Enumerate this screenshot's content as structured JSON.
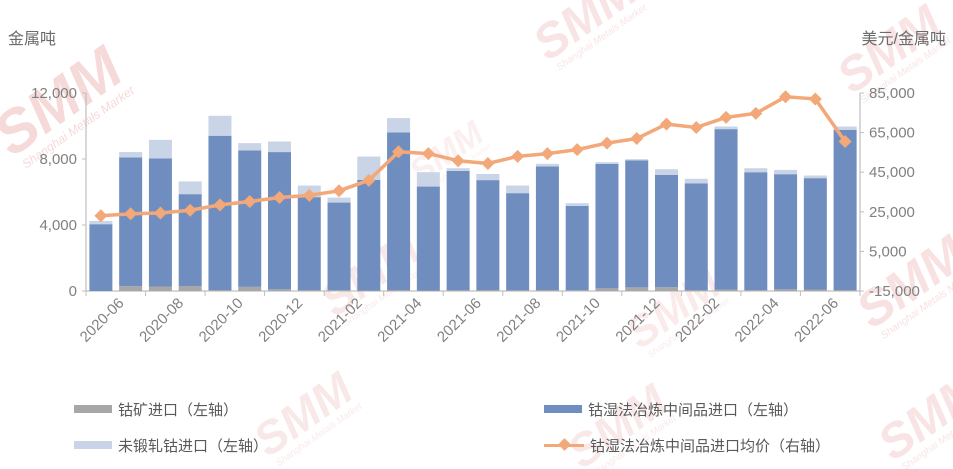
{
  "chart_data": {
    "type": "bar",
    "subtype": "stacked-bar-with-line-combo",
    "title": "",
    "left_axis_title": "金属吨",
    "right_axis_title": "美元/金属吨",
    "left_axis": {
      "min": 0,
      "max": 12000,
      "ticks": [
        0,
        4000,
        8000,
        12000
      ]
    },
    "right_axis": {
      "min": -15000,
      "max": 85000,
      "ticks": [
        -15000,
        5000,
        25000,
        45000,
        65000,
        85000
      ]
    },
    "gridlines": false,
    "legend_position": "bottom",
    "categories": [
      "2020-06",
      "2020-07",
      "2020-08",
      "2020-09",
      "2020-10",
      "2020-11",
      "2020-12",
      "2021-01",
      "2021-02",
      "2021-03",
      "2021-04",
      "2021-05",
      "2021-06",
      "2021-07",
      "2021-08",
      "2021-09",
      "2021-10",
      "2021-11",
      "2021-12",
      "2022-01",
      "2022-02",
      "2022-03",
      "2022-04",
      "2022-05",
      "2022-06",
      "2022-07"
    ],
    "x_tick_labels": [
      "2020-06",
      "2020-08",
      "2020-10",
      "2020-12",
      "2021-02",
      "2021-04",
      "2021-06",
      "2021-08",
      "2021-10",
      "2021-12",
      "2022-02",
      "2022-04",
      "2022-06"
    ],
    "series": [
      {
        "name": "钴矿进口（左轴）",
        "type": "bar",
        "axis": "left",
        "color": "#a7a7a7",
        "values": [
          0,
          290,
          270,
          300,
          60,
          250,
          100,
          60,
          50,
          30,
          60,
          30,
          40,
          60,
          40,
          60,
          50,
          160,
          220,
          230,
          60,
          80,
          50,
          100,
          90,
          60
        ]
      },
      {
        "name": "未锻轧钴进口（左轴）",
        "type": "bar",
        "axis": "left",
        "color": "#c9d4e7",
        "values": [
          200,
          320,
          1130,
          770,
          1210,
          440,
          640,
          700,
          300,
          1410,
          870,
          870,
          160,
          370,
          460,
          160,
          160,
          110,
          80,
          340,
          270,
          160,
          240,
          260,
          160,
          200
        ]
      },
      {
        "name": "钴湿法冶炼中间品进口（左轴）",
        "type": "bar",
        "axis": "left",
        "color": "#6f8ebf",
        "values": [
          4050,
          7810,
          7760,
          5570,
          9350,
          8270,
          8320,
          5630,
          5310,
          6710,
          9550,
          6300,
          7240,
          6660,
          5890,
          7490,
          5110,
          7540,
          7690,
          6810,
          6470,
          9730,
          7150,
          6980,
          6750,
          9710
        ]
      },
      {
        "name": "钴湿法冶炼中间品进口均价（右轴）",
        "type": "line",
        "axis": "right",
        "color": "#f3a879",
        "marker": "diamond",
        "values": [
          23000,
          24000,
          24400,
          25800,
          28500,
          30200,
          32200,
          33300,
          35600,
          40900,
          55300,
          54400,
          50800,
          49400,
          53000,
          54400,
          56400,
          59700,
          62000,
          69300,
          67600,
          72700,
          74700,
          83100,
          82000,
          60500
        ]
      }
    ],
    "stack_order_bottom_to_top": [
      "钴矿进口（左轴）",
      "钴湿法冶炼中间品进口（左轴）",
      "未锻轧钴进口（左轴）"
    ]
  },
  "watermark": {
    "text": "SMM",
    "subtext": "Shanghai Metals Market",
    "color": "#dd6e6e"
  },
  "colors": {
    "background": "#ffffff",
    "axis_line": "#bfbfbf",
    "tick_text": "#808080",
    "legend_text": "#595959"
  }
}
